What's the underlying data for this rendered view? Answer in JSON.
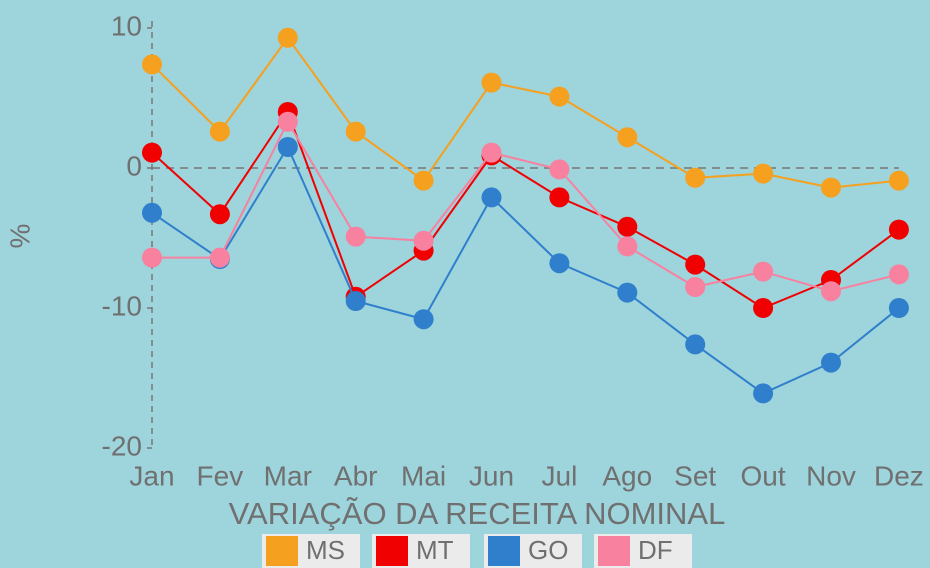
{
  "chart_data": {
    "type": "line",
    "x_label": "VARIAÇÃO DA RECEITA NOMINAL",
    "y_label": "%",
    "categories": [
      "Jan",
      "Fev",
      "Mar",
      "Abr",
      "Mai",
      "Jun",
      "Jul",
      "Ago",
      "Set",
      "Out",
      "Nov",
      "Dez"
    ],
    "series": [
      {
        "name": "MS",
        "color": "#f5a01e",
        "values": [
          7.4,
          2.6,
          9.3,
          2.6,
          -0.9,
          6.1,
          5.1,
          2.2,
          -0.7,
          -0.4,
          -1.4,
          -0.9
        ]
      },
      {
        "name": "MT",
        "color": "#f00000",
        "values": [
          1.1,
          -3.3,
          4.0,
          -9.2,
          -5.9,
          0.9,
          -2.1,
          -4.2,
          -6.9,
          -10,
          -8,
          -4.4
        ]
      },
      {
        "name": "GO",
        "color": "#2f7fcc",
        "values": [
          -3.2,
          -6.5,
          1.5,
          -9.5,
          -10.8,
          -2.1,
          -6.8,
          -8.9,
          -12.6,
          -16.1,
          -13.9,
          -10
        ]
      },
      {
        "name": "DF",
        "color": "#f7819f",
        "values": [
          -6.4,
          -6.4,
          3.3,
          -4.9,
          -5.2,
          1.1,
          -0.1,
          -5.6,
          -8.5,
          -7.4,
          -8.8,
          -7.6
        ]
      }
    ],
    "ylim": [
      -20,
      10.5
    ],
    "yticks": [
      -20,
      -10,
      0,
      10
    ],
    "hline": 0,
    "legend": "bottom"
  }
}
